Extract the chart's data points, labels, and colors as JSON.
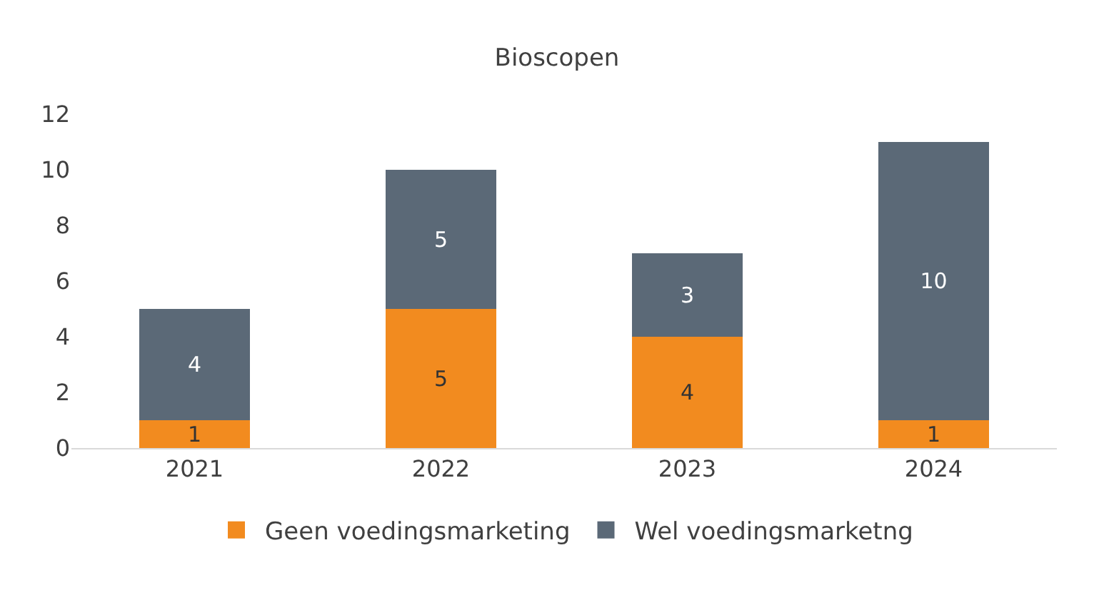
{
  "chart_data": {
    "type": "bar",
    "title": "Bioscopen",
    "categories": [
      "2021",
      "2022",
      "2023",
      "2024"
    ],
    "stacked": true,
    "data_labels": true,
    "ylim": [
      0,
      12
    ],
    "yticks": [
      0,
      2,
      4,
      6,
      8,
      10,
      12
    ],
    "grid": false,
    "legend": "bottom",
    "series": [
      {
        "name": "Geen voedingsmarketing",
        "color": "#f28b1f",
        "values": [
          1,
          5,
          4,
          1
        ]
      },
      {
        "name": "Wel voedingsmarketng",
        "color": "#5b6977",
        "values": [
          4,
          5,
          3,
          10
        ]
      }
    ]
  }
}
